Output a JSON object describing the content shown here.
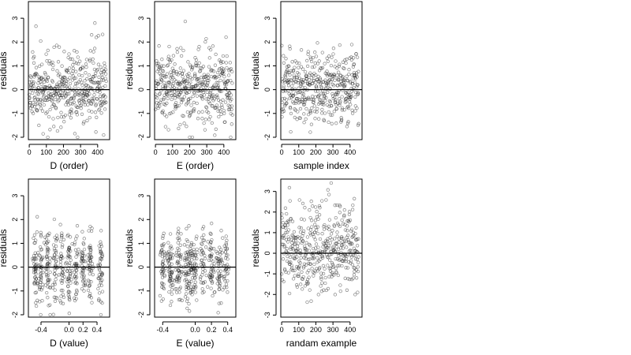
{
  "chart_data": [
    {
      "type": "scatter",
      "xlabel": "D (order)",
      "ylabel": "residuals",
      "xlim": [
        -5,
        470
      ],
      "ylim": [
        -2.1,
        3.7
      ],
      "xticks": [
        0,
        100,
        200,
        300,
        400
      ],
      "xtick_labels": [
        "0",
        "100",
        "200",
        "300",
        "400"
      ],
      "yticks": [
        -2,
        -1,
        0,
        1,
        2,
        3
      ],
      "ytick_labels": [
        "-2",
        "-1",
        "0",
        "1",
        "2",
        "3"
      ],
      "reference_line_y": 0,
      "n_points": 450,
      "x_range": [
        0,
        450
      ],
      "y_spread": 0.75,
      "seed": 11,
      "x_mode": "index",
      "grid": false
    },
    {
      "type": "scatter",
      "xlabel": "E (order)",
      "ylabel": "residuals",
      "xlim": [
        -5,
        470
      ],
      "ylim": [
        -2.1,
        3.7
      ],
      "xticks": [
        0,
        100,
        200,
        300,
        400
      ],
      "xtick_labels": [
        "0",
        "100",
        "200",
        "300",
        "400"
      ],
      "yticks": [
        -2,
        -1,
        0,
        1,
        2,
        3
      ],
      "ytick_labels": [
        "-2",
        "-1",
        "0",
        "1",
        "2",
        "3"
      ],
      "reference_line_y": 0,
      "n_points": 450,
      "x_range": [
        0,
        450
      ],
      "y_spread": 0.75,
      "seed": 23,
      "x_mode": "index",
      "grid": false
    },
    {
      "type": "scatter",
      "xlabel": "sample index",
      "ylabel": "residuals",
      "xlim": [
        -5,
        470
      ],
      "ylim": [
        -2.1,
        3.7
      ],
      "xticks": [
        0,
        100,
        200,
        300,
        400
      ],
      "xtick_labels": [
        "0",
        "100",
        "200",
        "300",
        "400"
      ],
      "yticks": [
        -2,
        -1,
        0,
        1,
        2,
        3
      ],
      "ytick_labels": [
        "-2",
        "-1",
        "0",
        "1",
        "2",
        "3"
      ],
      "reference_line_y": 0,
      "n_points": 450,
      "x_range": [
        0,
        450
      ],
      "y_spread": 0.75,
      "seed": 37,
      "x_mode": "index",
      "grid": false
    },
    {
      "type": "scatter",
      "xlabel": "D (value)",
      "ylabel": "residuals",
      "xlim": [
        -0.58,
        0.58
      ],
      "ylim": [
        -2.1,
        3.7
      ],
      "xticks": [
        -0.4,
        0,
        0.2,
        0.4
      ],
      "xtick_labels": [
        "-0.4",
        "0.0",
        "0.2",
        "0.4"
      ],
      "yticks": [
        -2,
        -1,
        0,
        1,
        2,
        3
      ],
      "ytick_labels": [
        "-2",
        "-1",
        "0",
        "1",
        "2",
        "3"
      ],
      "reference_line_y": 0,
      "n_points": 450,
      "y_spread": 0.75,
      "seed": 41,
      "x_mode": "clusters",
      "x_clusters": [
        -0.48,
        -0.4,
        -0.3,
        -0.2,
        -0.1,
        0.0,
        0.1,
        0.2,
        0.3,
        0.45
      ],
      "grid": false
    },
    {
      "type": "scatter",
      "xlabel": "E (value)",
      "ylabel": "residuals",
      "xlim": [
        -0.5,
        0.5
      ],
      "ylim": [
        -2.1,
        3.7
      ],
      "xticks": [
        -0.4,
        0,
        0.2,
        0.4
      ],
      "xtick_labels": [
        "-0.4",
        "0.0",
        "0.2",
        "0.4"
      ],
      "yticks": [
        -2,
        -1,
        0,
        1,
        2,
        3
      ],
      "ytick_labels": [
        "-2",
        "-1",
        "0",
        "1",
        "2",
        "3"
      ],
      "reference_line_y": 0,
      "n_points": 450,
      "y_spread": 0.75,
      "seed": 53,
      "x_mode": "clusters",
      "x_clusters": [
        -0.4,
        -0.3,
        -0.2,
        -0.1,
        -0.05,
        0.0,
        0.1,
        0.2,
        0.3,
        0.38
      ],
      "grid": false
    },
    {
      "type": "scatter",
      "xlabel": "randam example",
      "ylabel": "residuals",
      "xlim": [
        -5,
        470
      ],
      "ylim": [
        -3.1,
        3.6
      ],
      "xticks": [
        0,
        100,
        200,
        300,
        400
      ],
      "xtick_labels": [
        "0",
        "100",
        "200",
        "300",
        "400"
      ],
      "yticks": [
        -3,
        -2,
        -1,
        0,
        1,
        2,
        3
      ],
      "ytick_labels": [
        "-3",
        "-2",
        "-1",
        "0",
        "1",
        "2",
        "3"
      ],
      "reference_line_y": 0,
      "n_points": 450,
      "x_range": [
        0,
        450
      ],
      "y_spread": 1.0,
      "seed": 67,
      "x_mode": "index",
      "grid": false
    }
  ]
}
